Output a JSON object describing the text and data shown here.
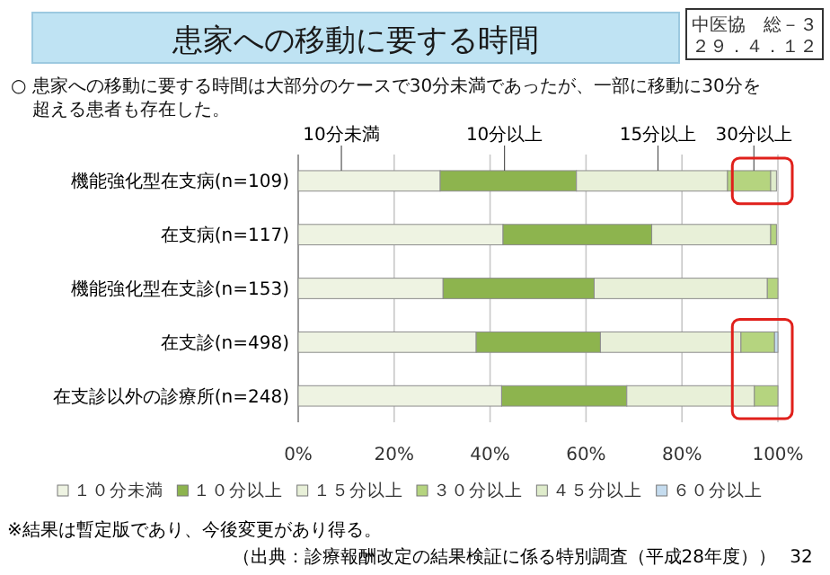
{
  "chart_data": {
    "type": "bar",
    "orientation": "horizontal",
    "stacked": true,
    "title": "患家への移動に要する時間",
    "subtitle": "○ 患家への移動に要する時間は大部分のケースで30分未満であったが、一部に移動に30分を超える患者も存在した。",
    "categories": [
      "機能強化型在支病(n=109)",
      "在支病(n=117)",
      "機能強化型在支診(n=153)",
      "在支診(n=498)",
      "在支診以外の診療所(n=248)"
    ],
    "series": [
      {
        "name": "１０分未満",
        "color": "#eef3e2",
        "values": [
          29.6,
          42.7,
          30.2,
          37.1,
          42.4
        ]
      },
      {
        "name": "１０分以上",
        "color": "#8db44e",
        "values": [
          28.4,
          31.0,
          31.5,
          25.9,
          26.1
        ]
      },
      {
        "name": "１５分以上",
        "color": "#e8f0d8",
        "values": [
          31.5,
          24.8,
          36.1,
          29.3,
          26.6
        ]
      },
      {
        "name": "３０分以上",
        "color": "#b5d47f",
        "values": [
          9.0,
          1.2,
          2.2,
          7.0,
          4.9
        ]
      },
      {
        "name": "４５分以上",
        "color": "#dfeccb",
        "values": [
          1.2,
          null,
          0,
          0,
          0
        ]
      },
      {
        "name": "６０分以上",
        "color": "#c5dcef",
        "values": [
          null,
          0,
          0,
          0.7,
          0
        ]
      }
    ],
    "xlim": [
      0,
      100
    ],
    "xticks": [
      {
        "value": 0,
        "label": "0%"
      },
      {
        "value": 20,
        "label": "20%"
      },
      {
        "value": 40,
        "label": "40%"
      },
      {
        "value": 60,
        "label": "60%"
      },
      {
        "value": 80,
        "label": "80%"
      },
      {
        "value": 100,
        "label": "100%"
      }
    ],
    "grid": "x",
    "legend": "bottom",
    "annotations": [
      "10分未満",
      "10分以上",
      "15分以上",
      "30分以上",
      "中医協　総－３",
      "２９．４．１２",
      "※結果は暫定版であり、今後変更があり得る。",
      "（出典：診療報酬改定の結果検証に係る特別調査（平成28年度））",
      "32"
    ]
  }
}
